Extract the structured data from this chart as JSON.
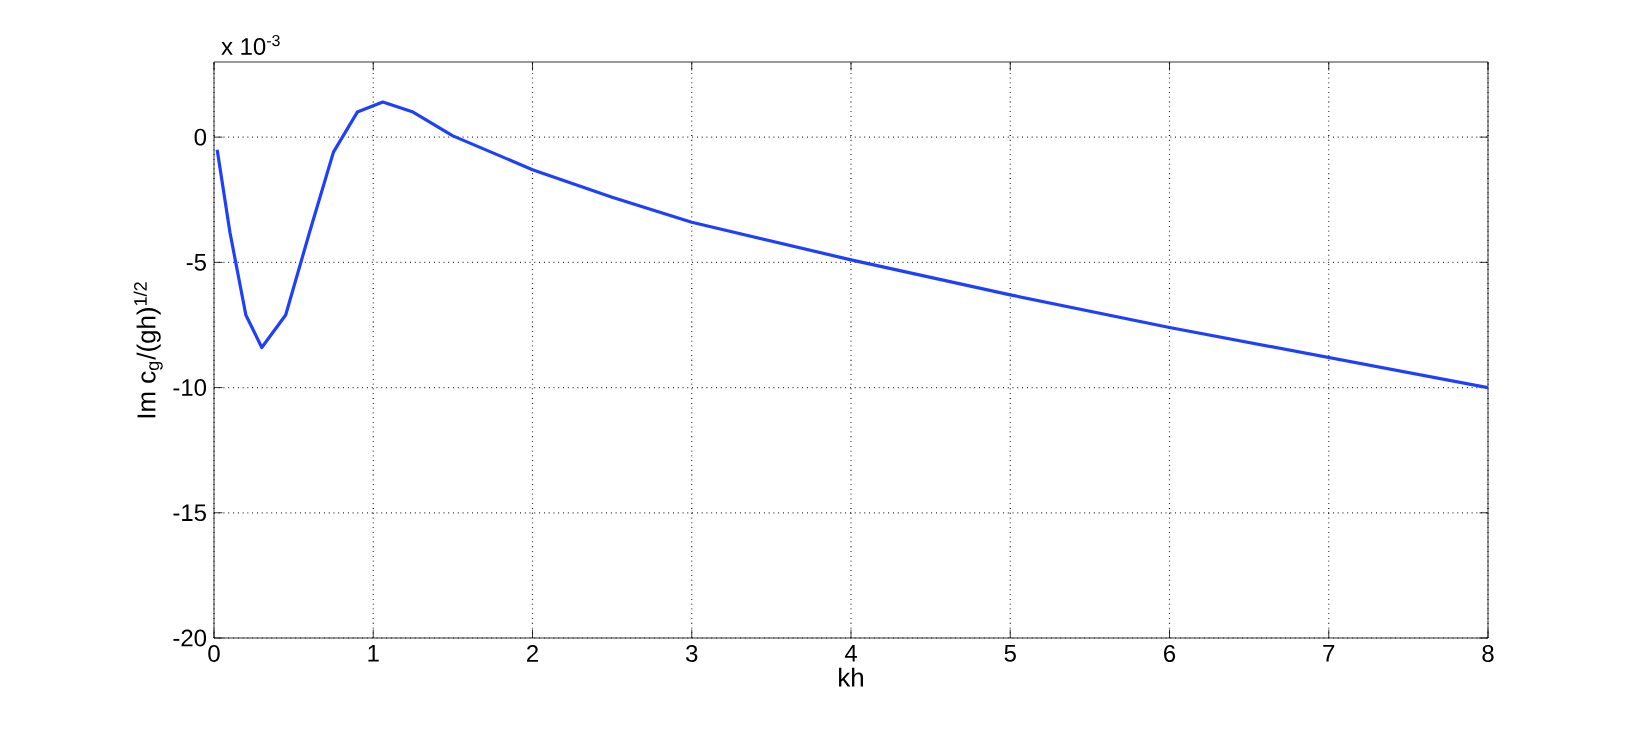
{
  "chart_data": {
    "type": "line",
    "xlabel": "kh",
    "ylabel": "Im c$_{g}$/(gh)$^{1/2}$",
    "annotations": [
      "x 10$^{-3}$"
    ],
    "xlim": [
      0,
      8
    ],
    "ylim": [
      -20,
      3
    ],
    "xticks": [
      0,
      1,
      2,
      3,
      4,
      5,
      6,
      7,
      8
    ],
    "yticks": [
      -20,
      -15,
      -10,
      -5,
      0
    ],
    "grid": true,
    "line_style": "solid",
    "marker": "none",
    "series": [
      {
        "color": "#1f3fff",
        "x": [
          0.02,
          0.1,
          0.2,
          0.3,
          0.45,
          0.6,
          0.75,
          0.9,
          1.06,
          1.25,
          1.5,
          2,
          2.5,
          3,
          4,
          5,
          6,
          7,
          8
        ],
        "values": [
          -0.5,
          -3.8,
          -7.1,
          -8.4,
          -7.1,
          -3.8,
          -0.6,
          1.0,
          1.4,
          1.0,
          0.05,
          -1.3,
          -2.4,
          -3.4,
          -4.9,
          -6.3,
          -7.6,
          -8.8,
          -10.0
        ]
      }
    ]
  }
}
